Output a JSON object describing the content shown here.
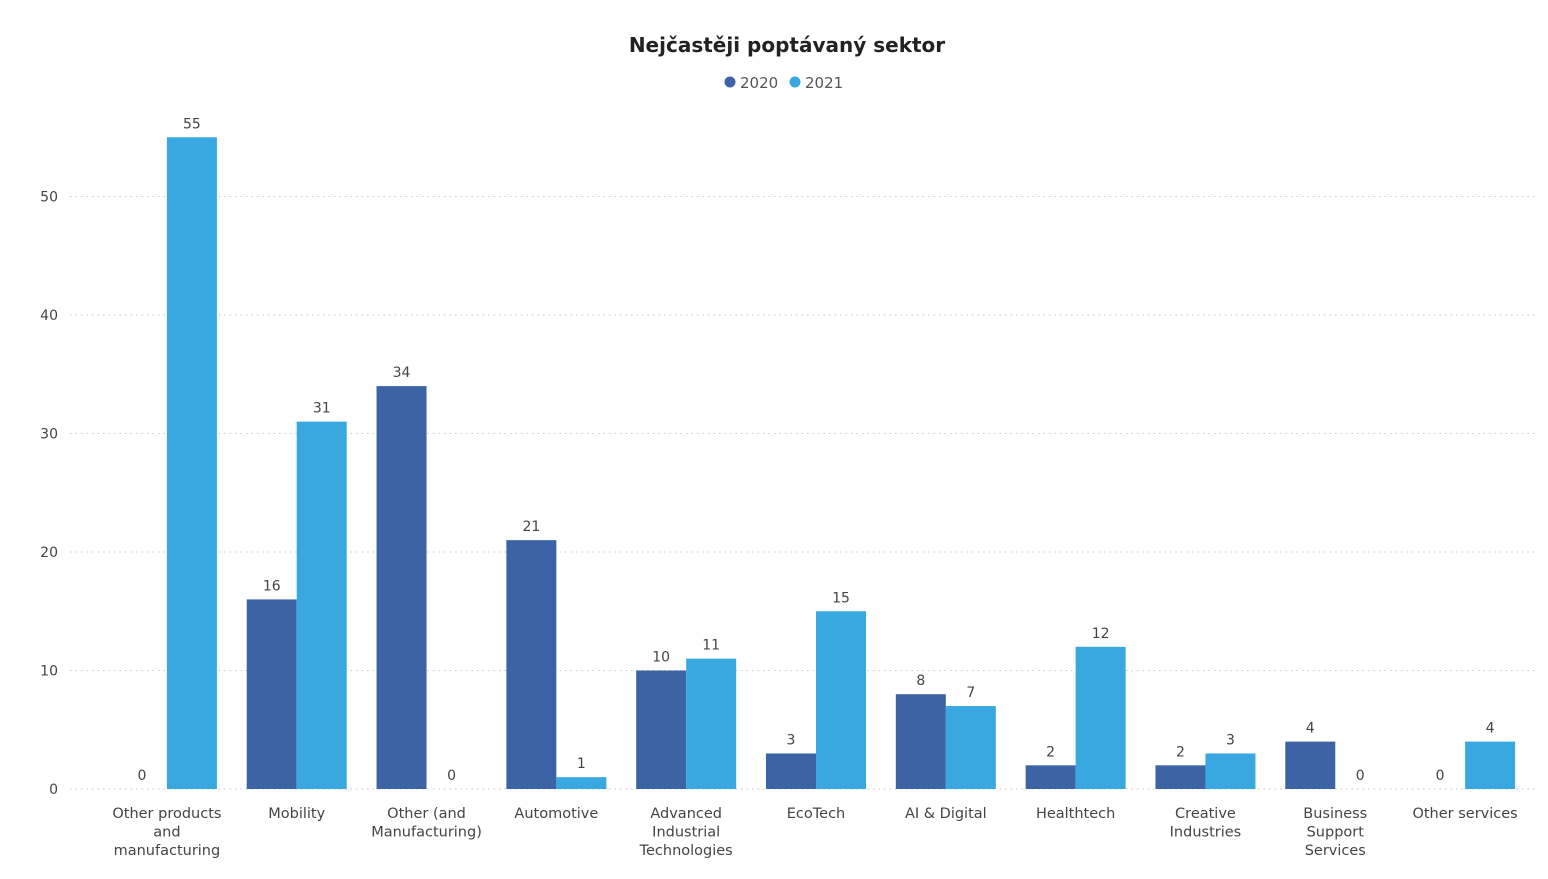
{
  "chart_data": {
    "type": "bar",
    "title": "Nejčastěji poptávaný sektor",
    "xlabel": "",
    "ylabel": "",
    "ylim": [
      0,
      57
    ],
    "yticks": [
      0,
      10,
      20,
      30,
      40,
      50
    ],
    "grid": true,
    "legend_position": "top-center",
    "categories": [
      [
        "Other products",
        "and",
        "manufacturing"
      ],
      [
        "Mobility"
      ],
      [
        "Other (and",
        "Manufacturing)"
      ],
      [
        "Automotive"
      ],
      [
        "Advanced",
        "Industrial",
        "Technologies"
      ],
      [
        "EcoTech"
      ],
      [
        "AI & Digital"
      ],
      [
        "Healthtech"
      ],
      [
        "Creative",
        "Industries"
      ],
      [
        "Business",
        "Support",
        "Services"
      ],
      [
        "Other services"
      ]
    ],
    "series": [
      {
        "name": "2020",
        "color": "#3C64A4",
        "values": [
          0,
          16,
          34,
          21,
          10,
          3,
          8,
          2,
          2,
          4,
          0
        ]
      },
      {
        "name": "2021",
        "color": "#3AA8E0",
        "values": [
          55,
          31,
          0,
          1,
          11,
          15,
          7,
          12,
          3,
          0,
          4
        ]
      }
    ]
  }
}
